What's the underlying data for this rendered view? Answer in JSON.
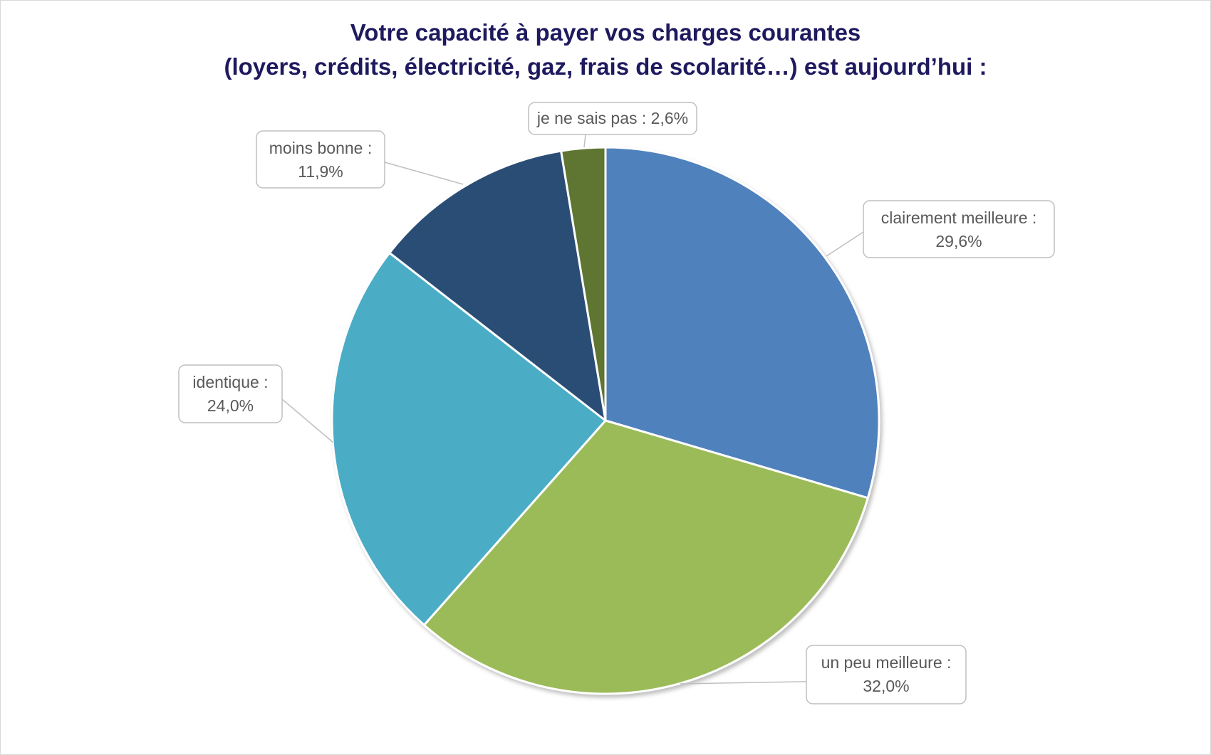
{
  "chart_data": {
    "type": "pie",
    "title_line1": "Votre capacité à payer vos charges courantes",
    "title_line2": "(loyers, crédits, électricité, gaz, frais de scolarité…) est aujourd’hui :",
    "start_angle_deg": 0,
    "direction": "clockwise",
    "slices": [
      {
        "label": "clairement meilleure :",
        "value_text": "29,6%",
        "value": 29.6,
        "color": "#4f81bd"
      },
      {
        "label": "un peu meilleure :",
        "value_text": "32,0%",
        "value": 32.0,
        "color": "#9bbb59"
      },
      {
        "label": "identique :",
        "value_text": "24,0%",
        "value": 24.0,
        "color": "#4bacc6"
      },
      {
        "label": "moins bonne :",
        "value_text": "11,9%",
        "value": 11.9,
        "color": "#2c4d75"
      },
      {
        "label": "je ne sais pas : 2,6%",
        "value_text": "",
        "value": 2.6,
        "color": "#5f7530"
      }
    ]
  }
}
